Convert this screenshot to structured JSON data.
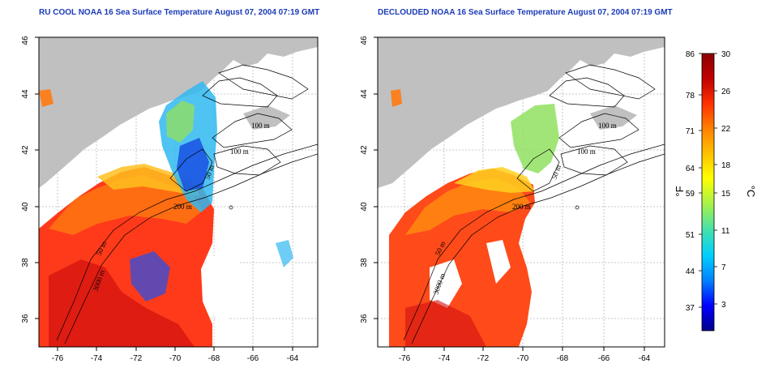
{
  "panels": [
    {
      "title": "RU COOL NOAA 16 Sea Surface Temperature August 07, 2004 07:19 GMT",
      "x_ticks": [
        "-76",
        "-74",
        "-72",
        "-70",
        "-68",
        "-66",
        "-64"
      ],
      "y_ticks": [
        "36",
        "38",
        "40",
        "42",
        "44",
        "46"
      ],
      "contour_labels": [
        "100 m",
        "100 m",
        "50 m",
        "200 m",
        "50 m",
        "3000 m"
      ]
    },
    {
      "title": "DECLOUDED NOAA 16 Sea Surface Temperature August 07, 2004 07:19 GMT",
      "x_ticks": [
        "-76",
        "-74",
        "-72",
        "-70",
        "-68",
        "-66",
        "-64"
      ],
      "y_ticks": [
        "36",
        "38",
        "40",
        "42",
        "44",
        "46"
      ],
      "contour_labels": [
        "100 m",
        "100 m",
        "50 m",
        "200 m",
        "50 m",
        "3000 m"
      ]
    }
  ],
  "colorbar": {
    "fahrenheit_label": "°F",
    "celsius_label": "°C",
    "fahrenheit_ticks": [
      "86",
      "78",
      "71",
      "64",
      "59",
      "51",
      "44",
      "37"
    ],
    "celsius_ticks": [
      "30",
      "26",
      "22",
      "18",
      "15",
      "11",
      "7",
      "3"
    ],
    "colors": [
      "#00008b",
      "#0000ff",
      "#0080ff",
      "#00cfff",
      "#40e0b0",
      "#a0f050",
      "#ffff00",
      "#ffc000",
      "#ff8000",
      "#ff3000",
      "#c00000",
      "#8b0000"
    ]
  },
  "colors": {
    "land": "#c0c0c0",
    "title": "#1b3bb8"
  }
}
